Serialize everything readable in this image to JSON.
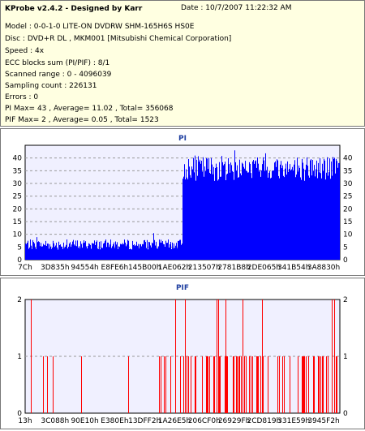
{
  "info": {
    "app_title": "KProbe v2.4.2 - Designed by Karr",
    "date": "Date : 10/7/2007 11:22:32 AM",
    "lines": [
      "Model : 0-0-1-0 LITE-ON DVDRW SHM-165H6S HS0E",
      "Disc : DVD+R DL , MKM001 [Mitsubishi Chemical Corporation]",
      "Speed : 4x",
      "ECC blocks sum (PI/PIF) : 8/1",
      "Scanned range : 0 - 4096039",
      "Sampling count : 226131",
      "Errors : 0",
      "PI Max= 43 , Average= 11.02 , Total= 356068",
      "PIF Max= 2 , Average= 0.05 , Total= 1523"
    ]
  },
  "chart_data": [
    {
      "type": "bar",
      "title": "PI",
      "series_color": "#0000ff",
      "x_tick_labels": [
        "7Ch",
        "3D835h",
        "94554h",
        "E8FE6h",
        "145B00h",
        "1AE062h",
        "213507h",
        "2781B8h",
        "2DE065h",
        "341B54h",
        "3A8830h"
      ],
      "ylim": [
        0,
        45
      ],
      "y_ticks": [
        0,
        5,
        10,
        15,
        20,
        25,
        30,
        35,
        40
      ],
      "grid": true,
      "max": 43,
      "average": 11.02,
      "segments": [
        {
          "x_start": 0.0,
          "x_end": 0.5,
          "base": 4,
          "spread": 4
        },
        {
          "x_start": 0.5,
          "x_end": 1.0,
          "base": 31,
          "spread": 10
        }
      ]
    },
    {
      "type": "bar",
      "title": "PIF",
      "series_color": "#ff0000",
      "x_tick_labels": [
        "13h",
        "3C088h",
        "90E10h",
        "E380Eh",
        "13DFF2h",
        "1A26E5h",
        "206CF0h",
        "26929Fh",
        "2CD819h",
        "331E59h",
        "3945F2h"
      ],
      "ylim": [
        0,
        2
      ],
      "y_ticks": [
        0,
        1,
        2
      ],
      "grid": true,
      "max": 2,
      "average": 0.05
    }
  ]
}
